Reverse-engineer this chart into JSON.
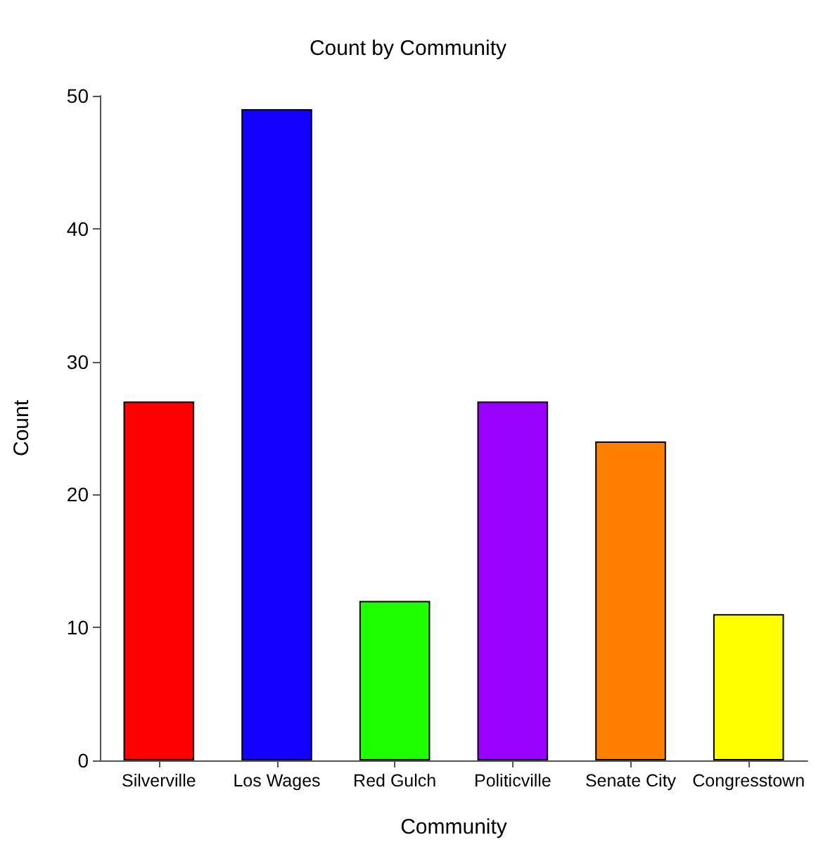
{
  "chart_data": {
    "type": "bar",
    "title": "Count by Community",
    "xlabel": "Community",
    "ylabel": "Count",
    "categories": [
      "Silverville",
      "Los Wages",
      "Red Gulch",
      "Politicville",
      "Senate City",
      "Congresstown"
    ],
    "values": [
      27,
      49,
      12,
      27,
      24,
      11
    ],
    "colors": [
      "#ff0000",
      "#1400ff",
      "#1eff00",
      "#9900ff",
      "#ff8000",
      "#ffff00"
    ],
    "ylim": [
      0,
      50
    ],
    "yticks": [
      0,
      10,
      20,
      30,
      40,
      50
    ],
    "grid": false
  }
}
